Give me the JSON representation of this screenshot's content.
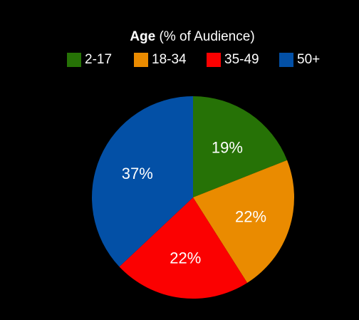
{
  "chart_data": {
    "type": "pie",
    "legend": {
      "title_bold": "Age",
      "title_rest": " (% of Audience)",
      "placement": "top"
    },
    "categories": [
      "2-17",
      "18-34",
      "35-49",
      "50+"
    ],
    "values": [
      19,
      22,
      22,
      37
    ],
    "value_labels": [
      "19%",
      "22%",
      "22%",
      "37%"
    ],
    "colors": [
      "#267206",
      "#ea8b00",
      "#fb0101",
      "#0350a6"
    ]
  }
}
